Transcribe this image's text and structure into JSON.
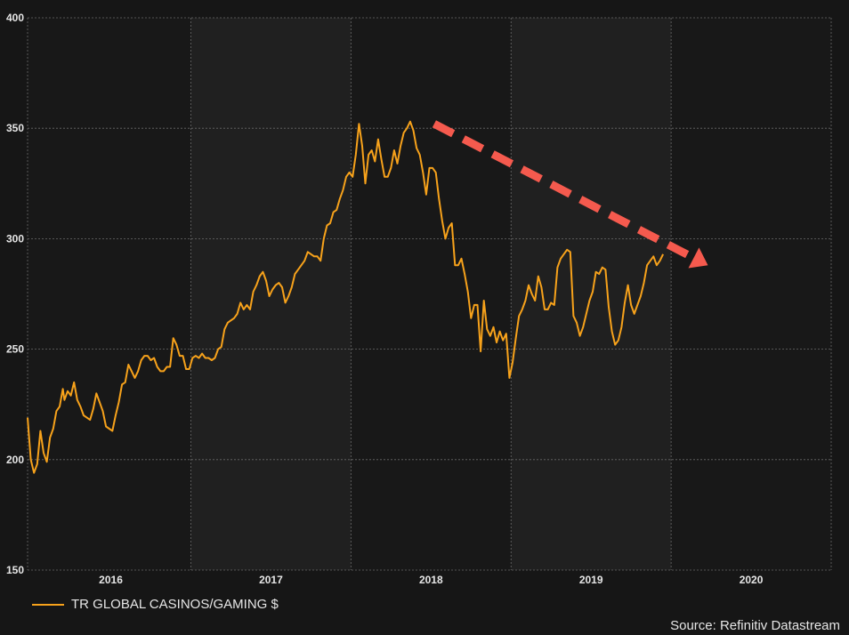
{
  "colors": {
    "background": "#161616",
    "plot_band_dark": "#181818",
    "plot_band_light": "#202020",
    "grid": "#6a6a6a",
    "line": "#f7a21b",
    "arrow": "#f55a4e"
  },
  "legend": {
    "label": "TR GLOBAL CASINOS/GAMING $"
  },
  "source": {
    "label": "Source: Refinitiv Datastream"
  },
  "chart_data": {
    "type": "line",
    "title": "",
    "xlabel": "",
    "ylabel": "",
    "ylim": [
      150,
      400
    ],
    "yticks": [
      "150",
      "200",
      "250",
      "300",
      "350",
      "400"
    ],
    "xlim": [
      2015.48,
      2020.5
    ],
    "xticks": [
      "2016",
      "2017",
      "2018",
      "2019",
      "2020"
    ],
    "grid": true,
    "legend_position": "bottom-left",
    "annotation": {
      "type": "dashed-arrow",
      "from": [
        2018.02,
        352
      ],
      "to": [
        2019.73,
        288
      ]
    },
    "series": [
      {
        "name": "TR GLOBAL CASINOS/GAMING $",
        "x": [
          2015.48,
          2015.5,
          2015.52,
          2015.54,
          2015.56,
          2015.58,
          2015.6,
          2015.62,
          2015.64,
          2015.66,
          2015.68,
          2015.7,
          2015.71,
          2015.73,
          2015.75,
          2015.77,
          2015.79,
          2015.81,
          2015.83,
          2015.85,
          2015.87,
          2015.89,
          2015.91,
          2015.93,
          2015.95,
          2015.97,
          2015.99,
          2016.01,
          2016.03,
          2016.05,
          2016.07,
          2016.09,
          2016.11,
          2016.13,
          2016.15,
          2016.17,
          2016.19,
          2016.21,
          2016.23,
          2016.25,
          2016.27,
          2016.29,
          2016.31,
          2016.33,
          2016.35,
          2016.37,
          2016.39,
          2016.41,
          2016.43,
          2016.45,
          2016.47,
          2016.49,
          2016.51,
          2016.53,
          2016.55,
          2016.57,
          2016.59,
          2016.61,
          2016.63,
          2016.65,
          2016.67,
          2016.69,
          2016.71,
          2016.73,
          2016.75,
          2016.77,
          2016.79,
          2016.81,
          2016.83,
          2016.85,
          2016.87,
          2016.89,
          2016.91,
          2016.93,
          2016.95,
          2016.97,
          2016.99,
          2017.01,
          2017.03,
          2017.05,
          2017.07,
          2017.09,
          2017.11,
          2017.13,
          2017.15,
          2017.17,
          2017.19,
          2017.21,
          2017.23,
          2017.25,
          2017.27,
          2017.29,
          2017.31,
          2017.33,
          2017.35,
          2017.37,
          2017.39,
          2017.41,
          2017.43,
          2017.45,
          2017.47,
          2017.49,
          2017.51,
          2017.53,
          2017.55,
          2017.57,
          2017.59,
          2017.61,
          2017.63,
          2017.65,
          2017.67,
          2017.69,
          2017.71,
          2017.73,
          2017.75,
          2017.77,
          2017.79,
          2017.81,
          2017.83,
          2017.85,
          2017.87,
          2017.89,
          2017.91,
          2017.93,
          2017.95,
          2017.97,
          2017.99,
          2018.01,
          2018.03,
          2018.05,
          2018.07,
          2018.09,
          2018.11,
          2018.13,
          2018.15,
          2018.17,
          2018.19,
          2018.21,
          2018.23,
          2018.25,
          2018.27,
          2018.29,
          2018.31,
          2018.33,
          2018.35,
          2018.37,
          2018.39,
          2018.41,
          2018.43,
          2018.45,
          2018.47,
          2018.49,
          2018.51,
          2018.53,
          2018.55,
          2018.57,
          2018.59,
          2018.61,
          2018.63,
          2018.65,
          2018.67,
          2018.69,
          2018.71,
          2018.73,
          2018.75,
          2018.77,
          2018.79,
          2018.81,
          2018.83,
          2018.85,
          2018.87,
          2018.89,
          2018.91,
          2018.93,
          2018.95,
          2018.97,
          2018.99,
          2019.01,
          2019.03,
          2019.05,
          2019.07,
          2019.09,
          2019.11,
          2019.13,
          2019.15,
          2019.17,
          2019.19,
          2019.21,
          2019.23,
          2019.25,
          2019.27,
          2019.29,
          2019.31,
          2019.33,
          2019.35,
          2019.37,
          2019.39,
          2019.41,
          2019.43,
          2019.45
        ],
        "values": [
          219,
          200,
          194,
          198,
          213,
          203,
          199,
          210,
          214,
          222,
          224,
          232,
          227,
          231,
          229,
          235,
          227,
          224,
          220,
          219,
          218,
          223,
          230,
          226,
          222,
          215,
          214,
          213,
          220,
          226,
          234,
          235,
          243,
          240,
          237,
          240,
          245,
          247,
          247,
          245,
          246,
          242,
          240,
          240,
          242,
          242,
          255,
          252,
          247,
          247,
          241,
          241,
          246,
          247,
          246,
          248,
          246,
          246,
          245,
          246,
          250,
          251,
          259,
          262,
          263,
          264,
          266,
          271,
          268,
          270,
          268,
          276,
          279,
          283,
          285,
          281,
          274,
          277,
          279,
          280,
          278,
          271,
          274,
          278,
          284,
          286,
          288,
          290,
          294,
          293,
          292,
          292,
          290,
          300,
          306,
          307,
          312,
          313,
          318,
          322,
          328,
          330,
          328,
          338,
          352,
          342,
          325,
          338,
          340,
          335,
          345,
          336,
          328,
          328,
          332,
          340,
          334,
          342,
          348,
          350,
          353,
          349,
          341,
          338,
          330,
          320,
          332,
          332,
          330,
          318,
          308,
          300,
          305,
          307,
          288,
          288,
          291,
          284,
          276,
          264,
          270,
          270,
          249,
          272,
          259,
          256,
          260,
          253,
          258,
          254,
          257,
          237,
          244,
          255,
          265,
          268,
          272,
          279,
          275,
          272,
          283,
          278,
          268,
          268,
          271,
          270,
          287,
          291,
          293,
          295,
          294,
          265,
          262,
          256,
          260,
          266,
          272,
          276,
          285,
          284,
          287,
          286,
          269,
          258,
          252,
          254,
          260,
          271,
          279,
          270,
          266,
          270,
          274,
          280,
          288,
          290,
          292,
          288,
          290,
          293
        ]
      }
    ]
  }
}
